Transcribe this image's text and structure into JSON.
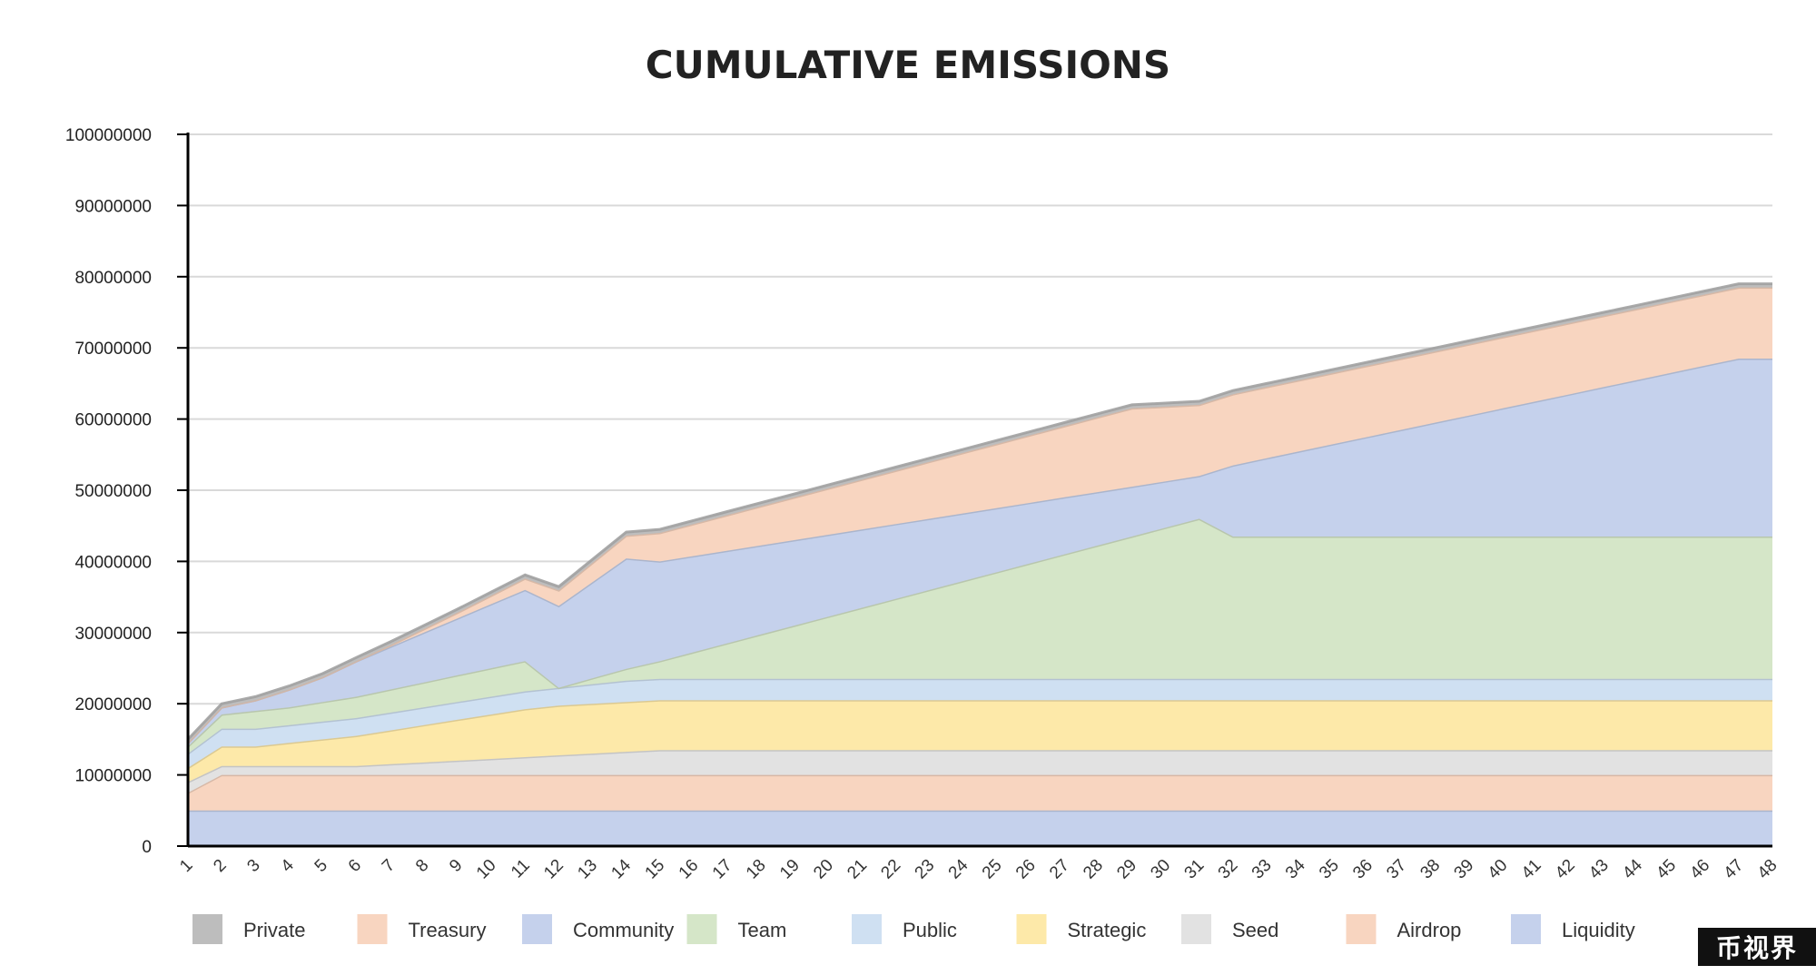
{
  "chart_data": {
    "type": "area",
    "stacked": true,
    "title": "CUMULATIVE EMISSIONS",
    "xlabel": "",
    "ylabel": "",
    "x": [
      1,
      2,
      3,
      4,
      5,
      6,
      7,
      8,
      9,
      10,
      11,
      12,
      13,
      14,
      15,
      16,
      17,
      18,
      19,
      20,
      21,
      22,
      23,
      24,
      25,
      26,
      27,
      28,
      29,
      30,
      31,
      32,
      33,
      34,
      35,
      36,
      37,
      38,
      39,
      40,
      41,
      42,
      43,
      44,
      45,
      46,
      47,
      48
    ],
    "yticks": [
      "0",
      "10000000",
      "20000000",
      "30000000",
      "40000000",
      "50000000",
      "60000000",
      "70000000",
      "80000000",
      "90000000",
      "100000000"
    ],
    "ylim": [
      0,
      100000000
    ],
    "grid": true,
    "legend_position": "bottom",
    "series": [
      {
        "name": "Liquidity",
        "color": "#c5d1ec",
        "values": [
          5000000,
          5000000,
          5000000,
          5000000,
          5000000,
          5000000,
          5000000,
          5000000,
          5000000,
          5000000,
          5000000,
          5000000,
          5000000,
          5000000,
          5000000,
          5000000,
          5000000,
          5000000,
          5000000,
          5000000,
          5000000,
          5000000,
          5000000,
          5000000,
          5000000,
          5000000,
          5000000,
          5000000,
          5000000,
          5000000,
          5000000,
          5000000,
          5000000,
          5000000,
          5000000,
          5000000,
          5000000,
          5000000,
          5000000,
          5000000,
          5000000,
          5000000,
          5000000,
          5000000,
          5000000,
          5000000,
          5000000,
          5000000
        ]
      },
      {
        "name": "Airdrop",
        "color": "#f8d5c0",
        "values": [
          2500000,
          5000000,
          5000000,
          5000000,
          5000000,
          5000000,
          5000000,
          5000000,
          5000000,
          5000000,
          5000000,
          5000000,
          5000000,
          5000000,
          5000000,
          5000000,
          5000000,
          5000000,
          5000000,
          5000000,
          5000000,
          5000000,
          5000000,
          5000000,
          5000000,
          5000000,
          5000000,
          5000000,
          5000000,
          5000000,
          5000000,
          5000000,
          5000000,
          5000000,
          5000000,
          5000000,
          5000000,
          5000000,
          5000000,
          5000000,
          5000000,
          5000000,
          5000000,
          5000000,
          5000000,
          5000000,
          5000000,
          5000000
        ]
      },
      {
        "name": "Seed",
        "color": "#e2e2e2",
        "values": [
          1500000,
          1250000,
          1250000,
          1250000,
          1250000,
          1250000,
          1500000,
          1750000,
          2000000,
          2250000,
          2500000,
          2750000,
          3000000,
          3250000,
          3500000,
          3500000,
          3500000,
          3500000,
          3500000,
          3500000,
          3500000,
          3500000,
          3500000,
          3500000,
          3500000,
          3500000,
          3500000,
          3500000,
          3500000,
          3500000,
          3500000,
          3500000,
          3500000,
          3500000,
          3500000,
          3500000,
          3500000,
          3500000,
          3500000,
          3500000,
          3500000,
          3500000,
          3500000,
          3500000,
          3500000,
          3500000,
          3500000,
          3500000
        ]
      },
      {
        "name": "Strategic",
        "color": "#fde9a9",
        "values": [
          2000000,
          2750000,
          2750000,
          3250000,
          3750000,
          4250000,
          4750000,
          5250000,
          5750000,
          6250000,
          6750000,
          7000000,
          7000000,
          7000000,
          7000000,
          7000000,
          7000000,
          7000000,
          7000000,
          7000000,
          7000000,
          7000000,
          7000000,
          7000000,
          7000000,
          7000000,
          7000000,
          7000000,
          7000000,
          7000000,
          7000000,
          7000000,
          7000000,
          7000000,
          7000000,
          7000000,
          7000000,
          7000000,
          7000000,
          7000000,
          7000000,
          7000000,
          7000000,
          7000000,
          7000000,
          7000000,
          7000000,
          7000000
        ]
      },
      {
        "name": "Public",
        "color": "#cfe0f2",
        "values": [
          2000000,
          2500000,
          2500000,
          2500000,
          2500000,
          2500000,
          2500000,
          2500000,
          2500000,
          2500000,
          2500000,
          2500000,
          2750000,
          3000000,
          3000000,
          3000000,
          3000000,
          3000000,
          3000000,
          3000000,
          3000000,
          3000000,
          3000000,
          3000000,
          3000000,
          3000000,
          3000000,
          3000000,
          3000000,
          3000000,
          3000000,
          3000000,
          3000000,
          3000000,
          3000000,
          3000000,
          3000000,
          3000000,
          3000000,
          3000000,
          3000000,
          3000000,
          3000000,
          3000000,
          3000000,
          3000000,
          3000000,
          3000000
        ]
      },
      {
        "name": "Team",
        "color": "#d5e6c8",
        "values": [
          1000000,
          2000000,
          2500000,
          2500000,
          2750000,
          3000000,
          3250000,
          3500000,
          3750000,
          4000000,
          4250000,
          0,
          833333,
          1666667,
          2500000,
          3750000,
          5000000,
          6250000,
          7500000,
          8750000,
          10000000,
          11250000,
          12500000,
          13750000,
          15000000,
          16250000,
          17500000,
          18750000,
          20000000,
          21250000,
          22500000,
          20000000,
          20000000,
          20000000,
          20000000,
          20000000,
          20000000,
          20000000,
          20000000,
          20000000,
          20000000,
          20000000,
          20000000,
          20000000,
          20000000,
          20000000,
          20000000,
          20000000
        ]
      },
      {
        "name": "Community",
        "color": "#c5d1ec",
        "values": [
          500000,
          1000000,
          1500000,
          2500000,
          3500000,
          5000000,
          6000000,
          7000000,
          8000000,
          9000000,
          10000000,
          11500000,
          13500000,
          15500000,
          14000000,
          13500000,
          13000000,
          12500000,
          12000000,
          11500000,
          11000000,
          10500000,
          10000000,
          9500000,
          9000000,
          8500000,
          8000000,
          7500000,
          7000000,
          6500000,
          6000000,
          10000000,
          11000000,
          12000000,
          13000000,
          14000000,
          15000000,
          16000000,
          17000000,
          18000000,
          19000000,
          20000000,
          21000000,
          22000000,
          23000000,
          24000000,
          25000000,
          25000000
        ]
      },
      {
        "name": "Treasury",
        "color": "#f8d5c0",
        "values": [
          0,
          0,
          0,
          0,
          0,
          0,
          200000,
          500000,
          800000,
          1200000,
          1600000,
          2200000,
          2700000,
          3200000,
          4000000,
          4500000,
          5000000,
          5500000,
          6000000,
          6500000,
          7000000,
          7500000,
          8000000,
          8500000,
          9000000,
          9500000,
          10000000,
          10500000,
          11000000,
          10500000,
          10000000,
          10000000,
          10000000,
          10000000,
          10000000,
          10000000,
          10000000,
          10000000,
          10000000,
          10000000,
          10000000,
          10000000,
          10000000,
          10000000,
          10000000,
          10000000,
          10000000,
          10000000
        ]
      },
      {
        "name": "Private",
        "color": "#bdbdbd",
        "values": [
          500000,
          500000,
          500000,
          500000,
          500000,
          500000,
          500000,
          500000,
          500000,
          500000,
          500000,
          500000,
          500000,
          500000,
          500000,
          500000,
          500000,
          500000,
          500000,
          500000,
          500000,
          500000,
          500000,
          500000,
          500000,
          500000,
          500000,
          500000,
          500000,
          500000,
          500000,
          500000,
          500000,
          500000,
          500000,
          500000,
          500000,
          500000,
          500000,
          500000,
          500000,
          500000,
          500000,
          500000,
          500000,
          500000,
          500000,
          500000
        ]
      }
    ],
    "legend": [
      {
        "name": "Private",
        "color": "#bdbdbd"
      },
      {
        "name": "Treasury",
        "color": "#f8d5c0"
      },
      {
        "name": "Community",
        "color": "#c5d1ec"
      },
      {
        "name": "Team",
        "color": "#d5e6c8"
      },
      {
        "name": "Public",
        "color": "#cfe0f2"
      },
      {
        "name": "Strategic",
        "color": "#fde9a9"
      },
      {
        "name": "Seed",
        "color": "#e2e2e2"
      },
      {
        "name": "Airdrop",
        "color": "#f8d5c0"
      },
      {
        "name": "Liquidity",
        "color": "#c5d1ec"
      }
    ]
  },
  "watermark": "币视界"
}
